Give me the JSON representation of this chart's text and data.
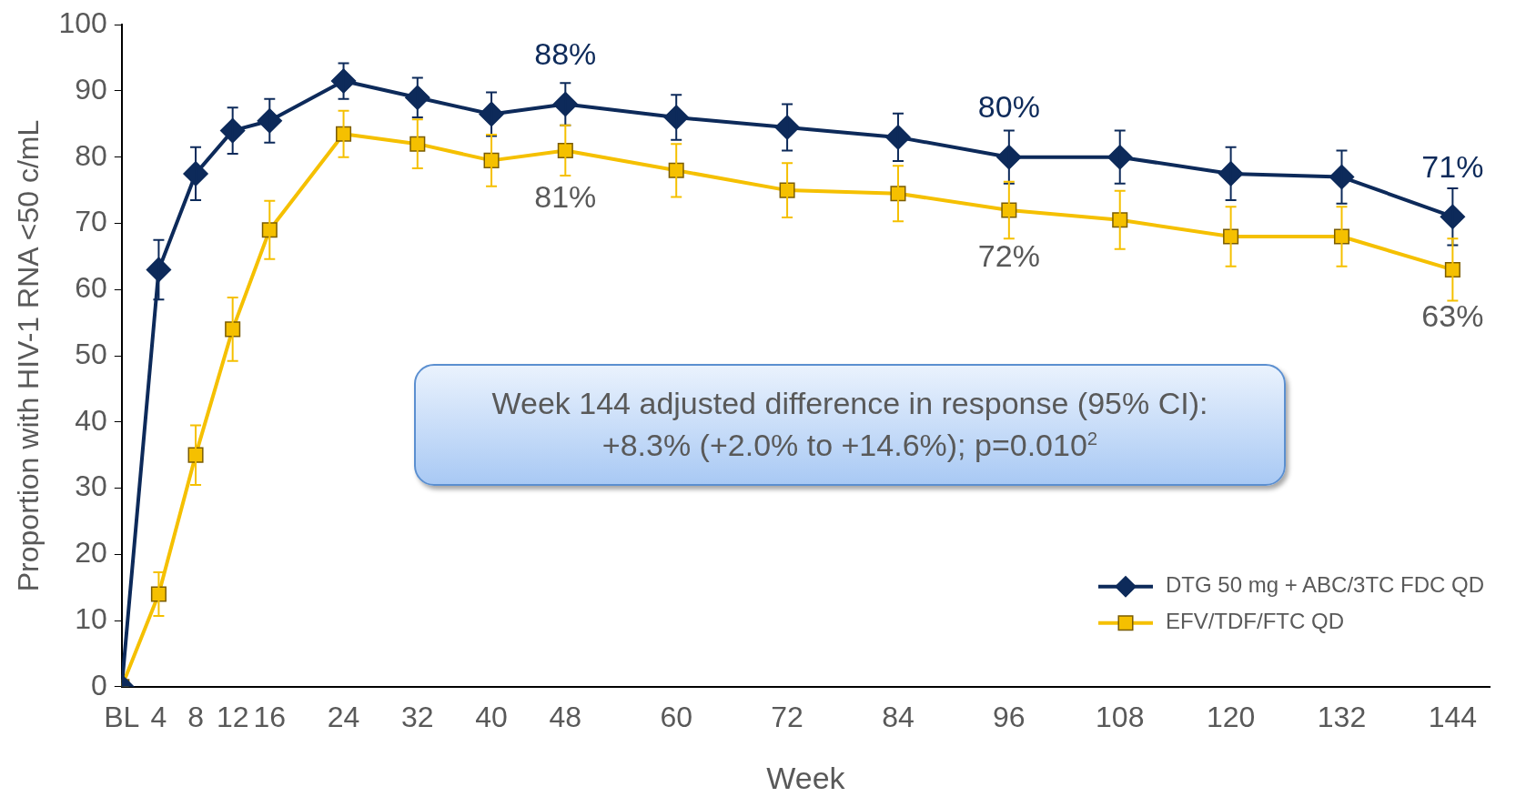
{
  "chart_data": {
    "type": "line",
    "xlabel": "Week",
    "ylabel": "Proportion with HIV-1 RNA <50 c/mL",
    "xlim": [
      0,
      148
    ],
    "xticks": [
      {
        "value": 0,
        "label": "BL"
      },
      4,
      8,
      12,
      16,
      24,
      32,
      40,
      48,
      60,
      72,
      84,
      96,
      108,
      120,
      132,
      144
    ],
    "ylim": [
      0,
      100
    ],
    "yticks": [
      0,
      10,
      20,
      30,
      40,
      50,
      60,
      70,
      80,
      90,
      100
    ],
    "x": [
      0,
      4,
      8,
      12,
      16,
      24,
      32,
      40,
      48,
      60,
      72,
      84,
      96,
      108,
      120,
      132,
      144
    ],
    "series": [
      {
        "name": "DTG 50 mg + ABC/3TC FDC QD",
        "color": "#0d2a5a",
        "marker": "diamond",
        "values": [
          0,
          63,
          77.5,
          84,
          85.5,
          91.5,
          89,
          86.5,
          88,
          86,
          84.5,
          83,
          80,
          80,
          77.5,
          77,
          71
        ],
        "errors": [
          null,
          4.5,
          4,
          3.5,
          3.3,
          2.7,
          3,
          3.3,
          3.2,
          3.4,
          3.5,
          3.6,
          4,
          4,
          4,
          4,
          4.3
        ],
        "value_labels": [
          null,
          null,
          null,
          null,
          null,
          null,
          null,
          null,
          "88%",
          null,
          null,
          null,
          "80%",
          null,
          null,
          null,
          "71%"
        ]
      },
      {
        "name": "EFV/TDF/FTC QD",
        "color": "#f5c000",
        "marker": "square",
        "values": [
          0,
          14,
          35,
          54,
          69,
          83.5,
          82,
          79.5,
          81,
          78,
          75,
          74.5,
          72,
          70.5,
          68,
          68,
          63
        ],
        "errors": [
          null,
          3.3,
          4.5,
          4.8,
          4.4,
          3.5,
          3.7,
          3.9,
          3.8,
          4,
          4.1,
          4.2,
          4.3,
          4.4,
          4.5,
          4.5,
          4.7
        ],
        "value_labels": [
          null,
          null,
          null,
          null,
          null,
          null,
          null,
          null,
          "81%",
          null,
          null,
          null,
          "72%",
          null,
          null,
          null,
          "63%"
        ]
      }
    ],
    "annotations": [
      "Week 144 adjusted difference in response (95% CI):\n+8.3% (+2.0% to +14.6%); p=0.010$^{2}$"
    ],
    "legend": "bottom right",
    "grid": false,
    "line_style": "solid"
  }
}
